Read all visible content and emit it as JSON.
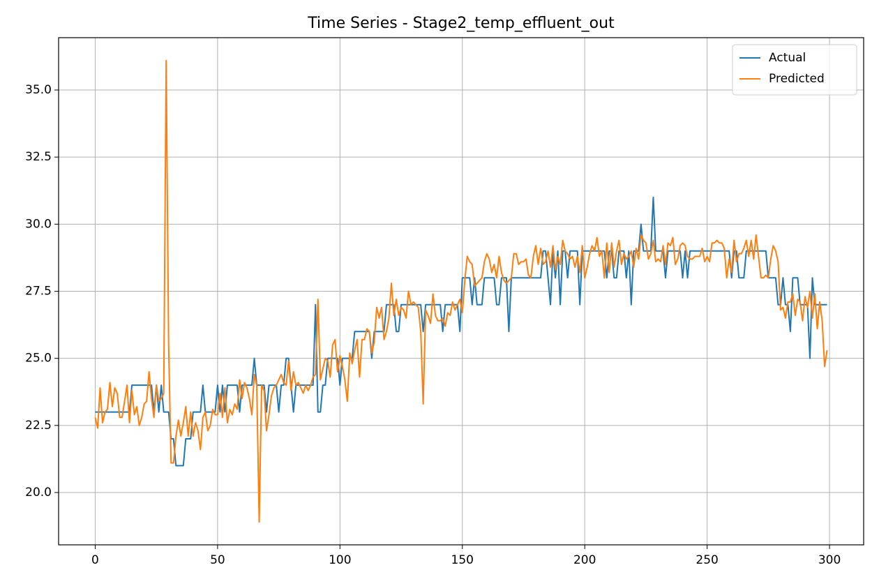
{
  "chart_data": {
    "type": "line",
    "title": "Time Series - Stage2_temp_effluent_out",
    "x": [
      0,
      1,
      2,
      3,
      4,
      5,
      6,
      7,
      8,
      9,
      10,
      11,
      12,
      13,
      14,
      15,
      16,
      17,
      18,
      19,
      20,
      21,
      22,
      23,
      24,
      25,
      26,
      27,
      28,
      29,
      30,
      31,
      32,
      33,
      34,
      35,
      36,
      37,
      38,
      39,
      40,
      41,
      42,
      43,
      44,
      45,
      46,
      47,
      48,
      49,
      50,
      51,
      52,
      53,
      54,
      55,
      56,
      57,
      58,
      59,
      60,
      61,
      62,
      63,
      64,
      65,
      66,
      67,
      68,
      69,
      70,
      71,
      72,
      73,
      74,
      75,
      76,
      77,
      78,
      79,
      80,
      81,
      82,
      83,
      84,
      85,
      86,
      87,
      88,
      89,
      90,
      91,
      92,
      93,
      94,
      95,
      96,
      97,
      98,
      99,
      100,
      101,
      102,
      103,
      104,
      105,
      106,
      107,
      108,
      109,
      110,
      111,
      112,
      113,
      114,
      115,
      116,
      117,
      118,
      119,
      120,
      121,
      122,
      123,
      124,
      125,
      126,
      127,
      128,
      129,
      130,
      131,
      132,
      133,
      134,
      135,
      136,
      137,
      138,
      139,
      140,
      141,
      142,
      143,
      144,
      145,
      146,
      147,
      148,
      149,
      150,
      151,
      152,
      153,
      154,
      155,
      156,
      157,
      158,
      159,
      160,
      161,
      162,
      163,
      164,
      165,
      166,
      167,
      168,
      169,
      170,
      171,
      172,
      173,
      174,
      175,
      176,
      177,
      178,
      179,
      180,
      181,
      182,
      183,
      184,
      185,
      186,
      187,
      188,
      189,
      190,
      191,
      192,
      193,
      194,
      195,
      196,
      197,
      198,
      199,
      200,
      201,
      202,
      203,
      204,
      205,
      206,
      207,
      208,
      209,
      210,
      211,
      212,
      213,
      214,
      215,
      216,
      217,
      218,
      219,
      220,
      221,
      222,
      223,
      224,
      225,
      226,
      227,
      228,
      229,
      230,
      231,
      232,
      233,
      234,
      235,
      236,
      237,
      238,
      239,
      240,
      241,
      242,
      243,
      244,
      245,
      246,
      247,
      248,
      249,
      250,
      251,
      252,
      253,
      254,
      255,
      256,
      257,
      258,
      259,
      260,
      261,
      262,
      263,
      264,
      265,
      266,
      267,
      268,
      269,
      270,
      271,
      272,
      273,
      274,
      275,
      276,
      277,
      278,
      279,
      280,
      281,
      282,
      283,
      284,
      285,
      286,
      287,
      288,
      289,
      290,
      291,
      292,
      293,
      294,
      295,
      296,
      297,
      298,
      299
    ],
    "series": [
      {
        "name": "Actual",
        "color": "#1f77b4",
        "values": [
          23,
          23,
          23,
          23,
          23,
          23,
          23,
          23,
          23,
          23,
          23,
          23,
          23,
          23,
          23,
          24,
          24,
          24,
          24,
          24,
          24,
          24,
          24,
          24,
          23,
          24,
          23,
          24,
          23,
          23,
          23,
          22,
          22,
          21,
          21,
          21,
          21,
          22,
          22,
          22,
          23,
          23,
          23,
          23,
          24,
          23,
          23,
          23,
          23,
          23,
          24,
          23,
          24,
          23,
          24,
          24,
          24,
          24,
          24,
          23,
          24,
          24,
          24,
          24,
          24,
          25,
          24,
          24,
          24,
          24,
          23,
          24,
          24,
          24,
          24,
          23,
          24,
          24,
          25,
          25,
          24,
          23,
          24,
          24,
          24,
          24,
          24,
          24,
          24,
          24,
          27,
          23,
          23,
          24,
          24,
          25,
          25,
          25,
          25,
          25,
          24,
          25,
          25,
          25,
          25,
          25,
          26,
          26,
          26,
          26,
          26,
          26,
          26,
          25,
          26,
          26,
          26,
          26,
          26,
          27,
          27,
          27,
          27,
          26,
          26,
          27,
          27,
          27,
          27,
          27,
          27,
          27,
          27,
          27,
          26,
          27,
          27,
          27,
          27,
          27,
          27,
          27,
          26,
          27,
          27,
          27,
          27,
          27,
          27,
          26,
          28,
          28,
          28,
          28,
          27,
          28,
          27,
          27,
          27,
          28,
          28,
          28,
          28,
          28,
          27,
          27,
          28,
          28,
          28,
          26,
          28,
          28,
          28,
          28,
          28,
          28,
          28,
          28,
          28,
          28,
          28,
          28,
          28,
          29,
          29,
          28,
          27,
          29,
          28,
          29,
          27,
          29,
          29,
          28,
          29,
          29,
          29,
          29,
          27,
          29,
          29,
          29,
          29,
          29,
          29,
          29,
          29,
          29,
          29,
          28,
          29,
          29,
          28,
          28,
          29,
          29,
          29,
          28,
          29,
          27,
          29,
          29,
          29,
          30,
          29,
          29,
          29,
          29,
          31,
          29,
          29,
          29,
          29,
          28,
          29,
          29,
          29,
          29,
          29,
          29,
          28,
          29,
          28,
          29,
          29,
          29,
          29,
          29,
          29,
          29,
          29,
          29,
          29,
          29,
          29,
          29,
          29,
          29,
          29,
          29,
          28,
          29,
          29,
          28,
          28,
          28,
          29,
          29,
          29,
          29,
          29,
          29,
          29,
          29,
          29,
          28,
          28,
          28,
          28,
          27,
          27,
          28,
          27,
          27,
          26,
          28,
          28,
          28,
          27,
          27,
          27,
          27,
          25,
          28,
          27,
          27,
          27,
          27,
          27,
          27
        ]
      },
      {
        "name": "Predicted",
        "color": "#ff7f0e",
        "values": [
          22.8,
          22.4,
          23.9,
          22.6,
          23.0,
          23.1,
          24.1,
          23.2,
          23.9,
          23.7,
          22.8,
          22.8,
          23.4,
          24.0,
          22.6,
          23.8,
          22.9,
          23.2,
          22.5,
          22.8,
          23.3,
          23.4,
          24.5,
          23.5,
          22.8,
          24.0,
          23.4,
          23.5,
          23.7,
          36.1,
          25.5,
          21.1,
          21.1,
          22.1,
          22.7,
          22.1,
          22.6,
          23.2,
          22.1,
          23.0,
          22.1,
          22.6,
          22.3,
          21.6,
          22.8,
          23.0,
          22.3,
          22.5,
          23.1,
          22.9,
          22.9,
          23.7,
          22.8,
          23.9,
          22.6,
          23.1,
          22.9,
          23.3,
          23.1,
          24.2,
          23.5,
          24.1,
          23.9,
          23.5,
          22.9,
          24.4,
          24.0,
          18.9,
          24.0,
          23.8,
          22.3,
          22.9,
          23.6,
          23.9,
          24.0,
          24.2,
          24.4,
          24.1,
          24.0,
          24.9,
          23.8,
          24.5,
          24.0,
          24.1,
          23.9,
          23.7,
          24.0,
          23.8,
          24.0,
          24.3,
          24.4,
          27.2,
          24.2,
          24.6,
          25.0,
          24.9,
          24.3,
          25.5,
          25.7,
          24.5,
          25.1,
          24.7,
          24.2,
          23.4,
          25.2,
          24.8,
          25.3,
          25.7,
          24.3,
          25.7,
          25.7,
          26.1,
          26.0,
          25.2,
          25.6,
          26.9,
          26.5,
          26.9,
          25.7,
          26.0,
          26.5,
          27.8,
          26.6,
          27.2,
          26.6,
          26.9,
          26.8,
          26.5,
          27.5,
          27.0,
          27.1,
          27.0,
          26.9,
          26.0,
          23.3,
          26.8,
          26.6,
          26.3,
          27.4,
          26.6,
          26.4,
          26.4,
          26.5,
          26.2,
          26.7,
          26.6,
          27.1,
          26.8,
          27.0,
          27.2,
          26.7,
          27.9,
          28.8,
          28.6,
          28.5,
          27.7,
          27.8,
          27.9,
          28.0,
          28.6,
          28.9,
          28.7,
          28.2,
          28.5,
          28.0,
          28.8,
          28.2,
          27.9,
          27.8,
          27.9,
          28.0,
          28.9,
          28.9,
          28.5,
          28.6,
          28.6,
          28.7,
          28.1,
          28.0,
          28.8,
          29.2,
          28.5,
          29.1,
          28.5,
          28.6,
          29.0,
          28.4,
          29.2,
          28.3,
          28.8,
          28.5,
          29.4,
          29.0,
          28.9,
          28.7,
          28.8,
          28.4,
          28.8,
          28.2,
          29.2,
          28.0,
          28.4,
          28.9,
          29.2,
          29.0,
          29.5,
          28.8,
          29.0,
          28.0,
          29.3,
          28.2,
          29.3,
          28.4,
          29.0,
          29.4,
          28.5,
          28.9,
          28.7,
          28.8,
          29.0,
          28.4,
          29.1,
          28.7,
          29.6,
          29.4,
          29.3,
          28.7,
          28.9,
          29.4,
          28.6,
          28.7,
          28.6,
          29.2,
          28.5,
          29.3,
          29.2,
          29.5,
          28.5,
          28.7,
          29.2,
          29.3,
          29.2,
          28.8,
          28.7,
          28.7,
          28.8,
          28.8,
          28.8,
          29.1,
          28.6,
          28.8,
          28.6,
          29.3,
          29.3,
          29.4,
          29.3,
          29.3,
          29.1,
          28.0,
          28.7,
          28.2,
          29.4,
          28.6,
          28.9,
          28.9,
          29.1,
          29.4,
          28.8,
          29.4,
          28.7,
          29.6,
          28.8,
          28.0,
          28.0,
          28.1,
          28.0,
          28.7,
          29.2,
          29.0,
          28.6,
          26.8,
          26.9,
          26.5,
          27.1,
          27.1,
          27.4,
          26.6,
          27.2,
          27.1,
          26.4,
          27.3,
          26.9,
          27.5,
          26.5,
          27.4,
          26.1,
          27.1,
          26.4,
          24.7,
          25.3
        ]
      }
    ],
    "xlim": [
      -14.95,
      313.95
    ],
    "xticks": [
      0,
      50,
      100,
      150,
      200,
      250,
      300
    ],
    "ylim": [
      18.05,
      36.95
    ],
    "yticks": [
      {
        "value": 20,
        "label": "20.0"
      },
      {
        "value": 22.5,
        "label": "22.5"
      },
      {
        "value": 25,
        "label": "25.0"
      },
      {
        "value": 27.5,
        "label": "27.5"
      },
      {
        "value": 30,
        "label": "30.0"
      },
      {
        "value": 32.5,
        "label": "32.5"
      },
      {
        "value": 35,
        "label": "35.0"
      }
    ],
    "grid": true,
    "legend": "upper right"
  }
}
